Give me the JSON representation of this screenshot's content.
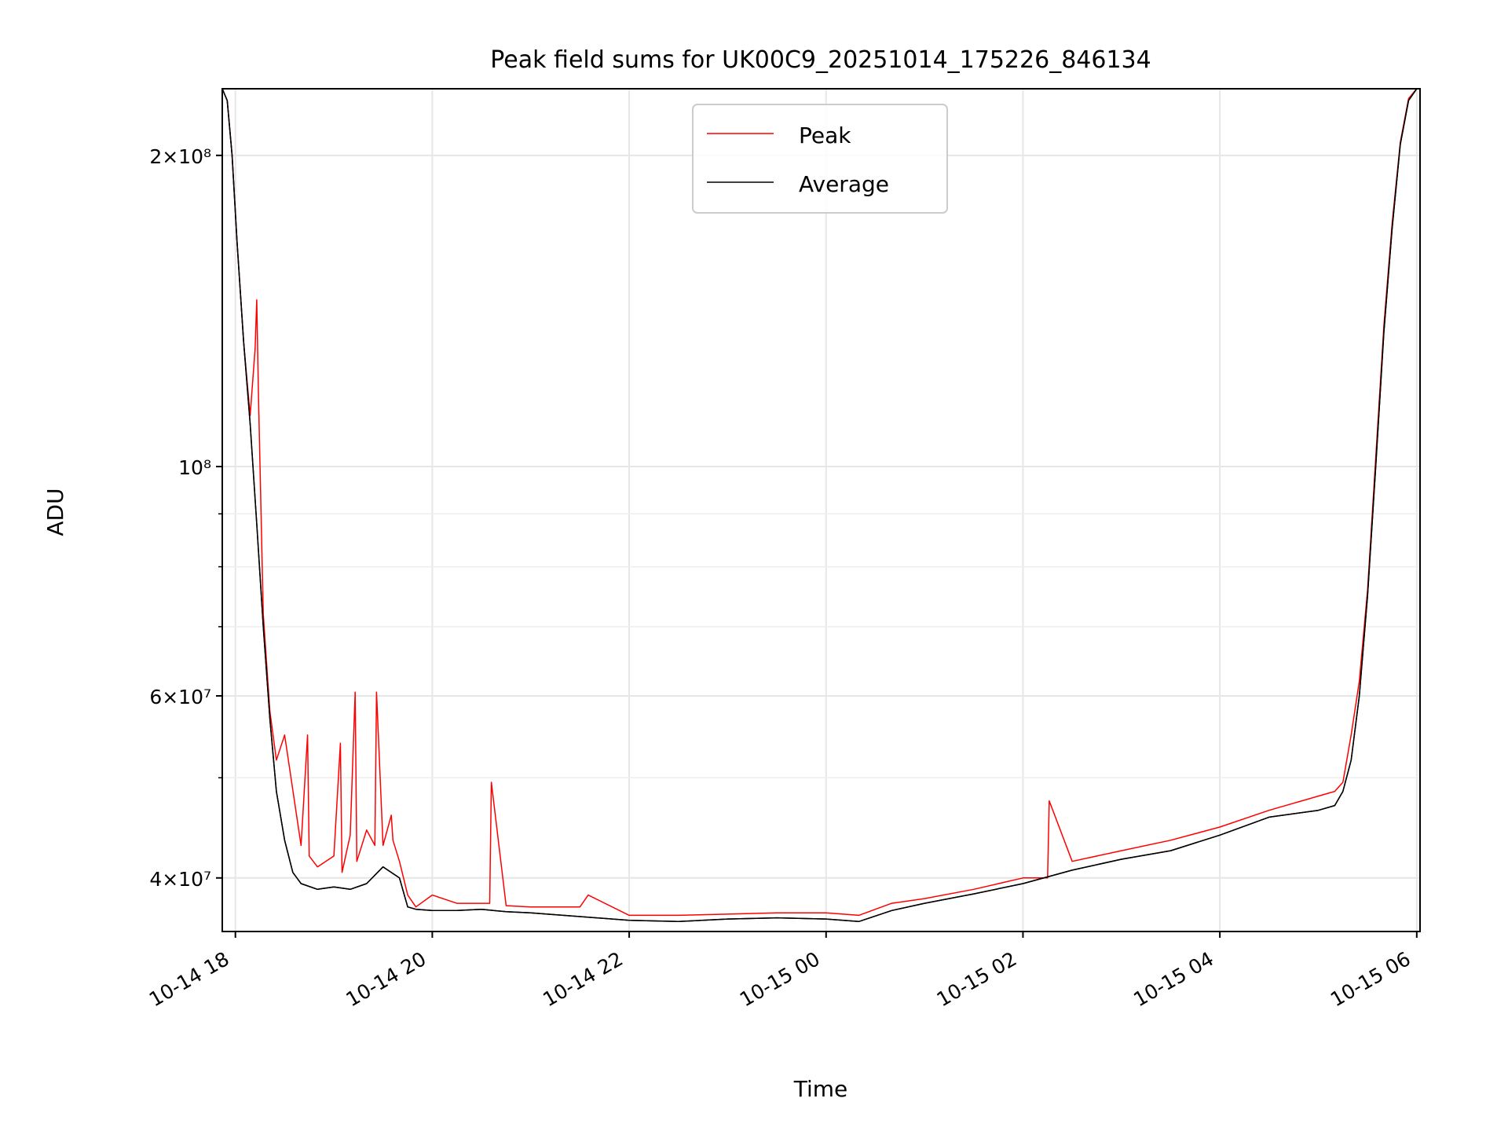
{
  "chart_data": {
    "type": "line",
    "title": "Peak field sums for UK00C9_20251014_175226_846134",
    "xlabel": "Time",
    "ylabel": "ADU",
    "x_scale": "time",
    "y_scale": "log",
    "xlim": [
      "2025-10-14 17:52",
      "2025-10-15 06:02"
    ],
    "ylim": [
      35500000,
      232000000
    ],
    "grid": true,
    "legend": {
      "position": "top-center",
      "entries": [
        "Peak",
        "Average"
      ]
    },
    "x_ticks": [
      {
        "value": "2025-10-14 18:00",
        "label": "10-14 18"
      },
      {
        "value": "2025-10-14 20:00",
        "label": "10-14 20"
      },
      {
        "value": "2025-10-14 22:00",
        "label": "10-14 22"
      },
      {
        "value": "2025-10-15 00:00",
        "label": "10-15 00"
      },
      {
        "value": "2025-10-15 02:00",
        "label": "10-15 02"
      },
      {
        "value": "2025-10-15 04:00",
        "label": "10-15 04"
      },
      {
        "value": "2025-10-15 06:00",
        "label": "10-15 06"
      }
    ],
    "y_ticks": [
      {
        "value": 40000000,
        "label": "4×10⁷"
      },
      {
        "value": 60000000,
        "label": "6×10⁷"
      },
      {
        "value": 100000000,
        "label": "10⁸"
      },
      {
        "value": 200000000,
        "label": "2×10⁸"
      }
    ],
    "y_minor_ticks": [
      50000000,
      70000000,
      80000000,
      90000000
    ],
    "series": [
      {
        "name": "Average",
        "color": "#000000",
        "x": [
          "2025-10-14 17:52",
          "2025-10-14 17:55",
          "2025-10-14 17:58",
          "2025-10-14 18:01",
          "2025-10-14 18:05",
          "2025-10-14 18:09",
          "2025-10-14 18:13",
          "2025-10-14 18:17",
          "2025-10-14 18:21",
          "2025-10-14 18:25",
          "2025-10-14 18:30",
          "2025-10-14 18:35",
          "2025-10-14 18:40",
          "2025-10-14 18:50",
          "2025-10-14 19:00",
          "2025-10-14 19:10",
          "2025-10-14 19:20",
          "2025-10-14 19:30",
          "2025-10-14 19:40",
          "2025-10-14 19:45",
          "2025-10-14 19:50",
          "2025-10-14 20:00",
          "2025-10-14 20:15",
          "2025-10-14 20:30",
          "2025-10-14 20:45",
          "2025-10-14 21:00",
          "2025-10-14 21:30",
          "2025-10-14 22:00",
          "2025-10-14 22:30",
          "2025-10-14 23:00",
          "2025-10-14 23:30",
          "2025-10-15 00:00",
          "2025-10-15 00:20",
          "2025-10-15 00:40",
          "2025-10-15 01:00",
          "2025-10-15 01:30",
          "2025-10-15 02:00",
          "2025-10-15 02:30",
          "2025-10-15 03:00",
          "2025-10-15 03:30",
          "2025-10-15 04:00",
          "2025-10-15 04:30",
          "2025-10-15 05:00",
          "2025-10-15 05:10",
          "2025-10-15 05:15",
          "2025-10-15 05:20",
          "2025-10-15 05:25",
          "2025-10-15 05:30",
          "2025-10-15 05:35",
          "2025-10-15 05:40",
          "2025-10-15 05:45",
          "2025-10-15 05:50",
          "2025-10-15 05:55",
          "2025-10-15 06:00",
          "2025-10-15 06:02"
        ],
        "y": [
          232000000,
          226000000,
          200000000,
          165000000,
          132000000,
          110000000,
          88000000,
          70000000,
          57000000,
          48500000,
          43500000,
          40500000,
          39500000,
          39000000,
          39200000,
          39000000,
          39500000,
          41000000,
          40000000,
          37500000,
          37300000,
          37200000,
          37200000,
          37300000,
          37100000,
          37000000,
          36700000,
          36400000,
          36300000,
          36500000,
          36600000,
          36500000,
          36300000,
          37200000,
          37800000,
          38600000,
          39500000,
          40700000,
          41700000,
          42500000,
          44000000,
          45800000,
          46500000,
          47000000,
          48500000,
          52000000,
          60000000,
          75000000,
          100000000,
          135000000,
          170000000,
          205000000,
          226000000,
          232000000,
          232000000
        ]
      },
      {
        "name": "Peak",
        "color": "#ff0000",
        "x": [
          "2025-10-14 17:52",
          "2025-10-14 17:55",
          "2025-10-14 17:58",
          "2025-10-14 18:01",
          "2025-10-14 18:05",
          "2025-10-14 18:09",
          "2025-10-14 18:12",
          "2025-10-14 18:13",
          "2025-10-14 18:14",
          "2025-10-14 18:17",
          "2025-10-14 18:21",
          "2025-10-14 18:25",
          "2025-10-14 18:30",
          "2025-10-14 18:40",
          "2025-10-14 18:44",
          "2025-10-14 18:45",
          "2025-10-14 18:50",
          "2025-10-14 19:00",
          "2025-10-14 19:04",
          "2025-10-14 19:05",
          "2025-10-14 19:10",
          "2025-10-14 19:13",
          "2025-10-14 19:14",
          "2025-10-14 19:20",
          "2025-10-14 19:25",
          "2025-10-14 19:26",
          "2025-10-14 19:30",
          "2025-10-14 19:35",
          "2025-10-14 19:36",
          "2025-10-14 19:40",
          "2025-10-14 19:45",
          "2025-10-14 19:50",
          "2025-10-14 20:00",
          "2025-10-14 20:15",
          "2025-10-14 20:35",
          "2025-10-14 20:36",
          "2025-10-14 20:45",
          "2025-10-14 21:00",
          "2025-10-14 21:30",
          "2025-10-14 21:35",
          "2025-10-14 22:00",
          "2025-10-14 22:30",
          "2025-10-14 23:00",
          "2025-10-14 23:30",
          "2025-10-15 00:00",
          "2025-10-15 00:20",
          "2025-10-15 00:40",
          "2025-10-15 01:00",
          "2025-10-15 01:30",
          "2025-10-15 02:00",
          "2025-10-15 02:15",
          "2025-10-15 02:16",
          "2025-10-15 02:30",
          "2025-10-15 03:00",
          "2025-10-15 03:30",
          "2025-10-15 04:00",
          "2025-10-15 04:30",
          "2025-10-15 05:00",
          "2025-10-15 05:10",
          "2025-10-15 05:15",
          "2025-10-15 05:20",
          "2025-10-15 05:25",
          "2025-10-15 05:30",
          "2025-10-15 05:35",
          "2025-10-15 05:40",
          "2025-10-15 05:45",
          "2025-10-15 05:50",
          "2025-10-15 05:55",
          "2025-10-15 06:00",
          "2025-10-15 06:02"
        ],
        "y": [
          232000000,
          226000000,
          200000000,
          165000000,
          132000000,
          112000000,
          130000000,
          145000000,
          118000000,
          72000000,
          58000000,
          52000000,
          55000000,
          43000000,
          55000000,
          42000000,
          41000000,
          42000000,
          54000000,
          40500000,
          44000000,
          60500000,
          41500000,
          44500000,
          43000000,
          60500000,
          43000000,
          46000000,
          43500000,
          41500000,
          38500000,
          37500000,
          38500000,
          37800000,
          37800000,
          49500000,
          37600000,
          37500000,
          37500000,
          38500000,
          36800000,
          36800000,
          36900000,
          37000000,
          37000000,
          36800000,
          37800000,
          38200000,
          39000000,
          40000000,
          40000000,
          47500000,
          41500000,
          42500000,
          43500000,
          44800000,
          46500000,
          48000000,
          48500000,
          49500000,
          55000000,
          62000000,
          76000000,
          102000000,
          137000000,
          172000000,
          206000000,
          227000000,
          232000000,
          232000000
        ]
      }
    ]
  }
}
